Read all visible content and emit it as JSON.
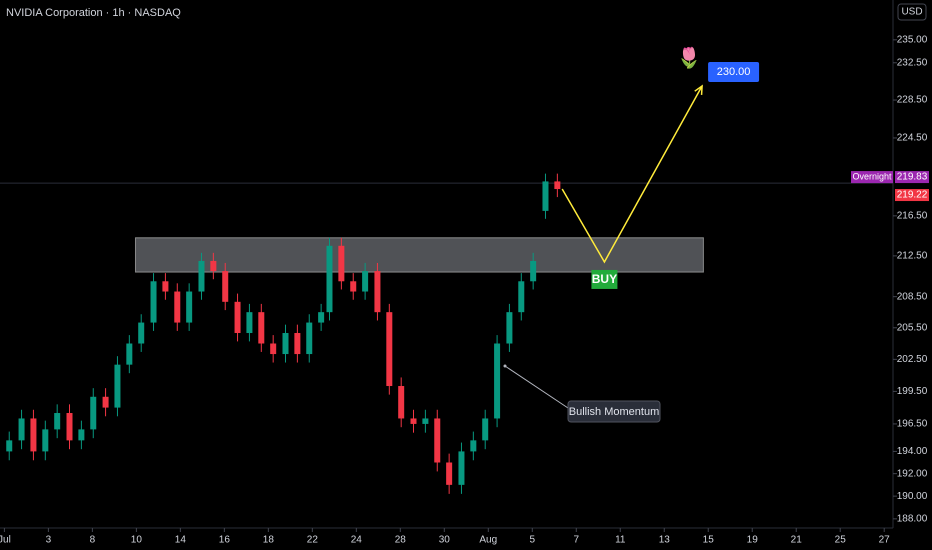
{
  "chart_data": {
    "type": "candlestick",
    "title": "NVIDIA Corporation · 1h · NASDAQ",
    "currency": "USD",
    "log_scale": true,
    "up_color": "#089981",
    "down_color": "#f23645",
    "xlim": [
      -0.1,
      20.2
    ],
    "ylim": [
      187.2,
      239.4
    ],
    "xticks": [
      {
        "value": 0,
        "label": "Jul"
      },
      {
        "value": 1,
        "label": "3"
      },
      {
        "value": 2,
        "label": "8"
      },
      {
        "value": 3,
        "label": "10"
      },
      {
        "value": 4,
        "label": "14"
      },
      {
        "value": 5,
        "label": "16"
      },
      {
        "value": 6,
        "label": "18"
      },
      {
        "value": 7,
        "label": "22"
      },
      {
        "value": 8,
        "label": "24"
      },
      {
        "value": 9,
        "label": "28"
      },
      {
        "value": 10,
        "label": "30"
      },
      {
        "value": 11,
        "label": "Aug"
      },
      {
        "value": 12,
        "label": "5"
      },
      {
        "value": 13,
        "label": "7"
      },
      {
        "value": 14,
        "label": "11"
      },
      {
        "value": 15,
        "label": "13"
      },
      {
        "value": 16,
        "label": "15"
      },
      {
        "value": 17,
        "label": "19"
      },
      {
        "value": 18,
        "label": "21"
      },
      {
        "value": 19,
        "label": "25"
      },
      {
        "value": 20,
        "label": "27"
      }
    ],
    "yticks": [
      {
        "value": 235,
        "label": "235.00"
      },
      {
        "value": 232.5,
        "label": "232.50"
      },
      {
        "value": 228.5,
        "label": "228.50"
      },
      {
        "value": 224.5,
        "label": "224.50"
      },
      {
        "value": 216.5,
        "label": "216.50"
      },
      {
        "value": 212.5,
        "label": "212.50"
      },
      {
        "value": 208.5,
        "label": "208.50"
      },
      {
        "value": 205.5,
        "label": "205.50"
      },
      {
        "value": 202.5,
        "label": "202.50"
      },
      {
        "value": 199.5,
        "label": "199.50"
      },
      {
        "value": 196.5,
        "label": "196.50"
      },
      {
        "value": 194,
        "label": "194.00"
      },
      {
        "value": 192,
        "label": "192.00"
      },
      {
        "value": 190,
        "label": "190.00"
      },
      {
        "value": 188,
        "label": "188.00"
      }
    ],
    "candles": {
      "x": [
        0.11,
        0.39,
        0.66,
        0.93,
        1.2,
        1.48,
        1.75,
        2.02,
        2.3,
        2.57,
        2.84,
        3.11,
        3.39,
        3.66,
        3.93,
        4.2,
        4.48,
        4.75,
        5.02,
        5.3,
        5.57,
        5.84,
        6.11,
        6.39,
        6.66,
        6.93,
        7.2,
        7.39,
        7.66,
        7.93,
        8.2,
        8.48,
        8.75,
        9.02,
        9.3,
        9.57,
        9.84,
        10.11,
        10.39,
        10.66,
        10.93,
        11.2,
        11.48,
        11.75,
        12.02,
        12.3,
        12.57
      ],
      "open": [
        194,
        195,
        197,
        194,
        196,
        197.5,
        195,
        196,
        199,
        198,
        202,
        204,
        206,
        210,
        209,
        206,
        209,
        212,
        211,
        208,
        205,
        207,
        204,
        203,
        205,
        203,
        206,
        207,
        213.5,
        210,
        209,
        211,
        207,
        200,
        197,
        196.5,
        197,
        193,
        191,
        194,
        195,
        197,
        204,
        207,
        210,
        217,
        220
      ],
      "high": [
        195.8,
        197.8,
        197.8,
        196.8,
        198.3,
        198.3,
        196.8,
        199.8,
        199.8,
        202.8,
        204.8,
        206.8,
        210.8,
        210.8,
        209.8,
        209.8,
        212.8,
        212.8,
        211.8,
        208.8,
        207.8,
        207.8,
        204.8,
        205.8,
        205.8,
        206.8,
        207.8,
        214.3,
        214.3,
        210.8,
        211.8,
        211.8,
        207.8,
        200.8,
        197.8,
        197.8,
        197.8,
        193.8,
        194.8,
        195.8,
        197.8,
        204.8,
        207.8,
        210.8,
        212.8,
        220.8,
        220.8
      ],
      "low": [
        193.2,
        194.2,
        193.2,
        193.2,
        195.2,
        194.2,
        194.2,
        195.2,
        197.2,
        197.2,
        201.2,
        203.2,
        205.2,
        208.2,
        205.2,
        205.2,
        208.2,
        210.2,
        207.2,
        204.2,
        204.2,
        203.2,
        202.2,
        202.2,
        202.2,
        202.2,
        205.2,
        206.2,
        209.2,
        208.2,
        208.2,
        206.2,
        199.2,
        196.2,
        195.7,
        195.7,
        192.2,
        190.2,
        190.2,
        193.2,
        194.2,
        196.2,
        203.2,
        206.2,
        209.2,
        216.2,
        218.4
      ],
      "close": [
        195,
        197,
        194,
        196,
        197.5,
        195,
        196,
        199,
        198,
        202,
        204,
        206,
        210,
        209,
        206,
        209,
        212,
        211,
        208,
        205,
        207,
        204,
        203,
        205,
        203,
        206,
        207,
        213.5,
        210,
        209,
        211,
        207,
        200,
        197,
        196.5,
        197,
        193,
        191,
        194,
        195,
        197,
        204,
        207,
        210,
        212,
        220,
        219.22
      ]
    },
    "overnight": {
      "label": "Overnight",
      "value": 219.83,
      "color": "#9c27b0"
    },
    "last_price": {
      "value": 219.22,
      "color": "#f23645"
    },
    "zone": {
      "x": [
        2.98,
        15.89
      ],
      "y": [
        210.9,
        214.3
      ]
    },
    "projection": {
      "x": [
        12.68,
        13.64,
        15.86
      ],
      "y": [
        219.22,
        211.9,
        230
      ],
      "color": "#ffeb3b"
    },
    "buy_label": "BUY",
    "target": {
      "value": 230,
      "label": "230.00"
    },
    "icon": "🌷",
    "callout": "Bullish Momentum"
  }
}
